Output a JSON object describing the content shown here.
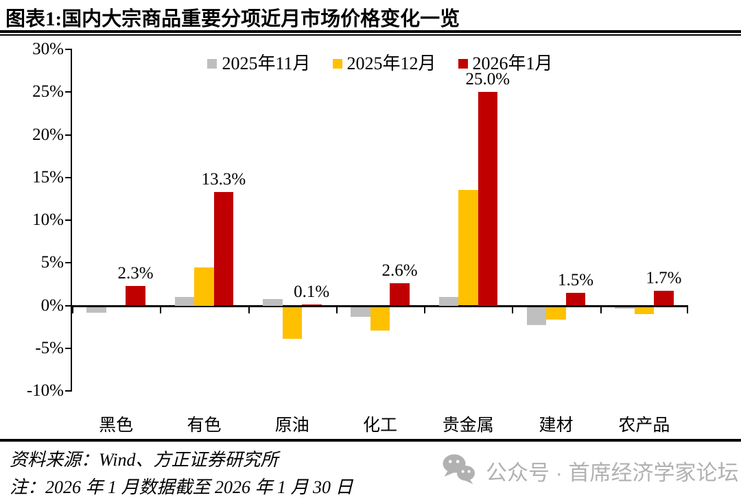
{
  "title": "图表1:国内大宗商品重要分项近月市场价格变化一览",
  "chart_data": {
    "type": "bar",
    "title": "图表1:国内大宗商品重要分项近月市场价格变化一览",
    "categories": [
      "黑色",
      "有色",
      "原油",
      "化工",
      "贵金属",
      "建材",
      "农产品"
    ],
    "series": [
      {
        "name": "2025年11月",
        "color": "#BFBFBF",
        "values": [
          -0.7,
          1.0,
          0.8,
          -1.2,
          1.0,
          -2.1,
          -0.2
        ]
      },
      {
        "name": "2025年12月",
        "color": "#FFC000",
        "values": [
          0,
          4.5,
          -3.7,
          -2.8,
          13.5,
          -1.5,
          -0.8
        ]
      },
      {
        "name": "2026年1月",
        "color": "#C00000",
        "values": [
          2.3,
          13.3,
          0.1,
          2.6,
          25.0,
          1.5,
          1.7
        ]
      }
    ],
    "data_labels": [
      "2.3%",
      "13.3%",
      "0.1%",
      "2.6%",
      "25.0%",
      "1.5%",
      "1.7%"
    ],
    "y_ticks": [
      "30%",
      "25%",
      "20%",
      "15%",
      "10%",
      "5%",
      "0%",
      "-5%",
      "-10%"
    ],
    "ylim": [
      -10,
      30
    ],
    "xlabel": "",
    "ylabel": "",
    "grid": false,
    "legend_position": "top",
    "axis_color": "#000000"
  },
  "footer": {
    "source": "资料来源：Wind、方正证券研究所",
    "note": "注：2026 年 1 月数据截至 2026 年 1 月 30 日"
  },
  "watermark": {
    "label": "公众号 · 首席经济学家论坛",
    "icon": "wechat-icon",
    "color": "#b1b1b1"
  }
}
